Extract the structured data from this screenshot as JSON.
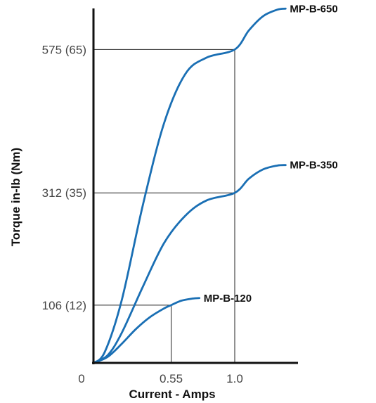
{
  "chart_data": {
    "type": "line",
    "title": "",
    "xlabel": "Current - Amps",
    "ylabel": "Torque in-lb (Nm)",
    "xlim": [
      0,
      1.4
    ],
    "ylim": [
      0,
      650
    ],
    "grid": false,
    "legend": "inline labels at line ends",
    "x_ticks": [
      {
        "value": 0,
        "label": "0"
      },
      {
        "value": 0.55,
        "label": "0.55"
      },
      {
        "value": 1.0,
        "label": "1.0"
      }
    ],
    "y_ticks": [
      {
        "value": 106,
        "label": "106 (12)"
      },
      {
        "value": 312,
        "label": "312 (35)"
      },
      {
        "value": 575,
        "label": "575 (65)"
      }
    ],
    "reference_points": [
      {
        "x": 0.55,
        "y": 106
      },
      {
        "x": 1.0,
        "y": 312
      },
      {
        "x": 1.0,
        "y": 575
      }
    ],
    "series": [
      {
        "name": "MP-B-650",
        "color": "#1a6fb4",
        "points": [
          [
            0,
            0
          ],
          [
            0.1,
            30
          ],
          [
            0.2,
            110
          ],
          [
            0.3,
            220
          ],
          [
            0.4,
            330
          ],
          [
            0.5,
            425
          ],
          [
            0.6,
            505
          ],
          [
            0.7,
            558
          ],
          [
            0.8,
            586
          ],
          [
            0.9,
            592
          ],
          [
            1.0,
            575
          ],
          [
            1.1,
            605
          ],
          [
            1.2,
            632
          ],
          [
            1.3,
            646
          ],
          [
            1.36,
            650
          ]
        ]
      },
      {
        "name": "MP-B-350",
        "color": "#1a6fb4",
        "points": [
          [
            0,
            0
          ],
          [
            0.1,
            15
          ],
          [
            0.2,
            60
          ],
          [
            0.3,
            125
          ],
          [
            0.4,
            185
          ],
          [
            0.5,
            235
          ],
          [
            0.6,
            275
          ],
          [
            0.7,
            300
          ],
          [
            0.8,
            312
          ],
          [
            0.9,
            312
          ],
          [
            1.0,
            312
          ],
          [
            1.1,
            335
          ],
          [
            1.2,
            352
          ],
          [
            1.3,
            360
          ],
          [
            1.36,
            362
          ]
        ]
      },
      {
        "name": "MP-B-120",
        "color": "#1a6fb4",
        "points": [
          [
            0,
            0
          ],
          [
            0.1,
            12
          ],
          [
            0.2,
            40
          ],
          [
            0.3,
            70
          ],
          [
            0.4,
            90
          ],
          [
            0.5,
            101
          ],
          [
            0.55,
            106
          ],
          [
            0.6,
            112
          ],
          [
            0.7,
            118
          ],
          [
            0.75,
            119
          ]
        ]
      }
    ]
  }
}
